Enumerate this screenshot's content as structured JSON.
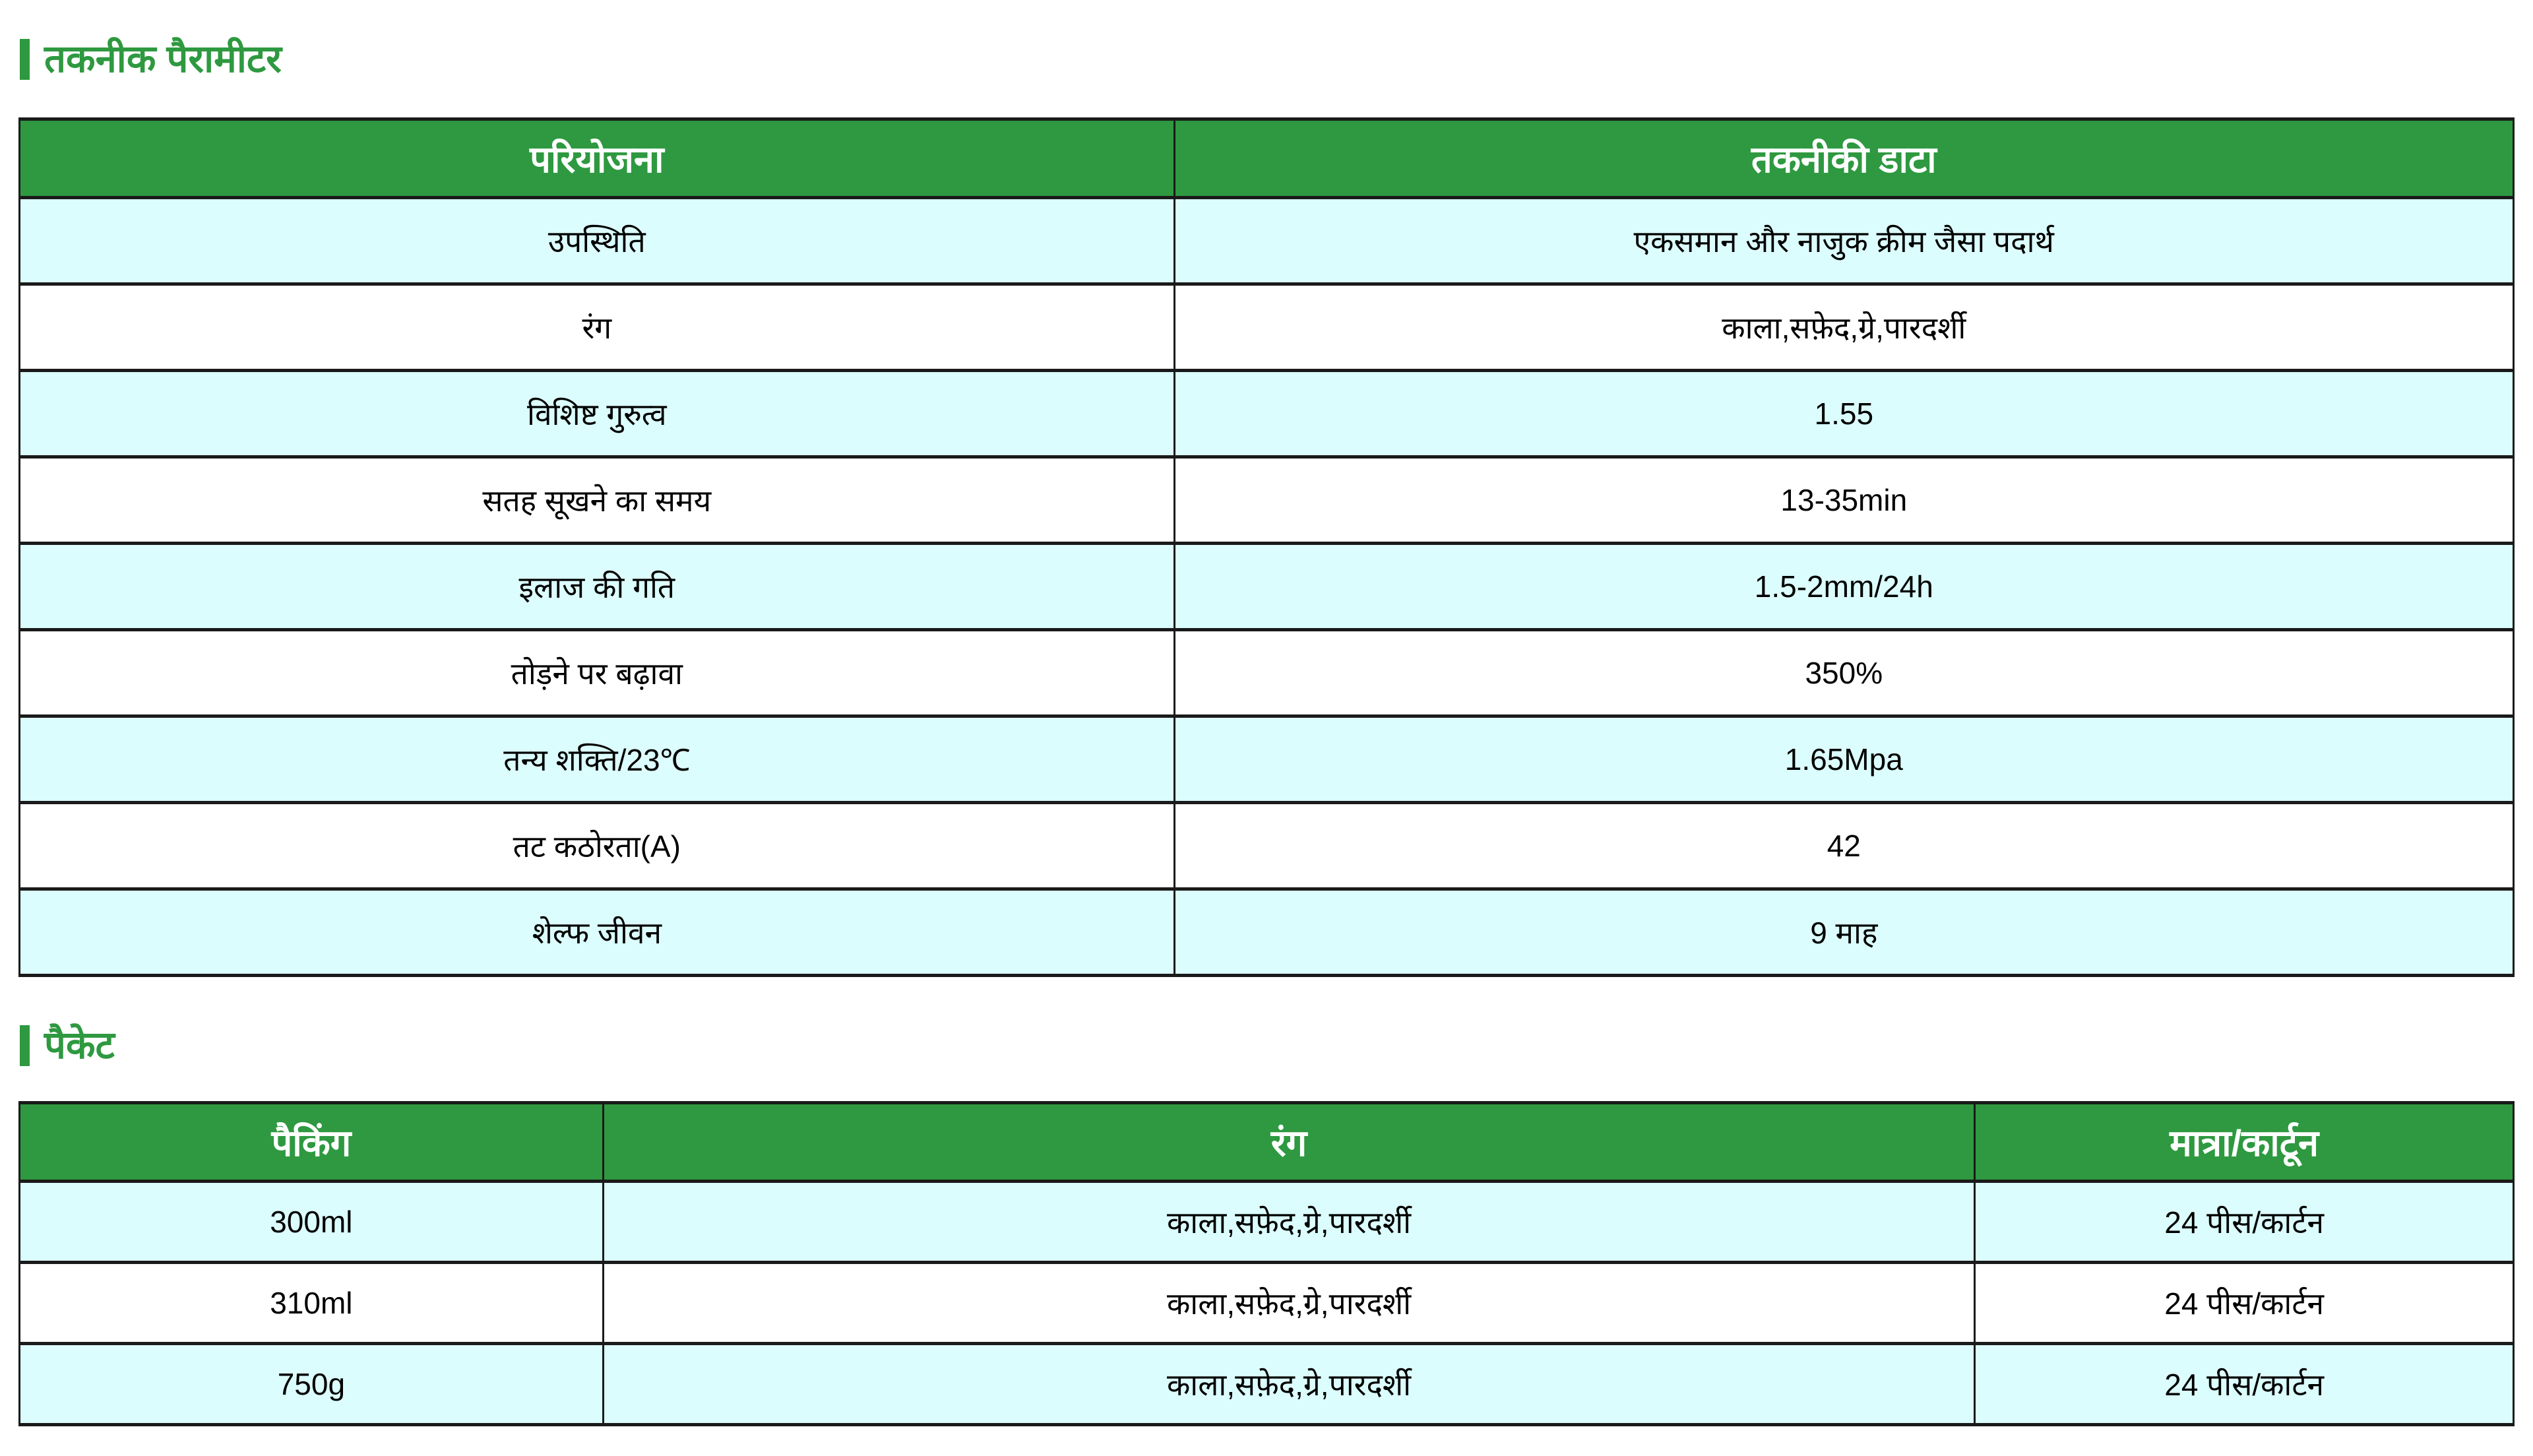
{
  "colors": {
    "accent_green": "#2e9940",
    "row_highlight_cyan": "#dcfdfd",
    "row_plain_white": "#ffffff",
    "border_black": "#1a1a1a",
    "header_text": "#ffffff",
    "body_text": "#000000"
  },
  "sections": {
    "tech": {
      "title": "तकनीक पैरामीटर",
      "columns": [
        "परियोजना",
        "तकनीकी डाटा"
      ],
      "rows": [
        {
          "param": "उपस्थिति",
          "value": "एकसमान और नाजुक क्रीम जैसा पदार्थ"
        },
        {
          "param": "रंग",
          "value": "काला,सफ़ेद,ग्रे,पारदर्शी"
        },
        {
          "param": "विशिष्ट गुरुत्व",
          "value": "1.55"
        },
        {
          "param": "सतह सूखने का समय",
          "value": "13-35min"
        },
        {
          "param": "इलाज की गति",
          "value": "1.5-2mm/24h"
        },
        {
          "param": "तोड़ने पर बढ़ावा",
          "value": "350%"
        },
        {
          "param": "तन्य शक्ति/23℃",
          "value": "1.65Mpa"
        },
        {
          "param": "तट कठोरता(A)",
          "value": "42"
        },
        {
          "param": "शेल्फ जीवन",
          "value": "9 माह"
        }
      ]
    },
    "pack": {
      "title": "पैकेट",
      "columns": [
        "पैकिंग",
        "रंग",
        "मात्रा/कार्टून"
      ],
      "rows": [
        {
          "packing": "300ml",
          "colors": "काला,सफ़ेद,ग्रे,पारदर्शी",
          "qty": "24 पीस/कार्टन"
        },
        {
          "packing": "310ml",
          "colors": "काला,सफ़ेद,ग्रे,पारदर्शी",
          "qty": "24 पीस/कार्टन"
        },
        {
          "packing": "750g",
          "colors": "काला,सफ़ेद,ग्रे,पारदर्शी",
          "qty": "24 पीस/कार्टन"
        }
      ]
    }
  }
}
